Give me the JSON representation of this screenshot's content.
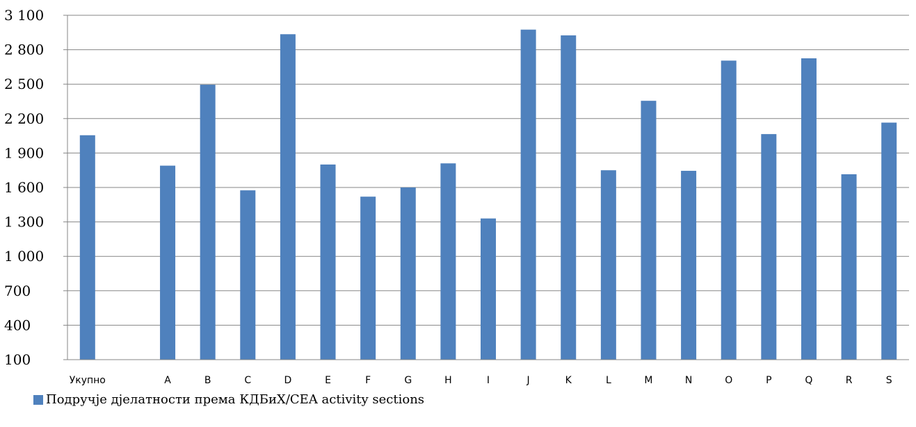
{
  "chart_data": {
    "type": "bar",
    "categories": [
      "Укупно",
      "",
      "A",
      "B",
      "C",
      "D",
      "E",
      "F",
      "G",
      "H",
      "I",
      "J",
      "K",
      "L",
      "M",
      "N",
      "O",
      "P",
      "Q",
      "R",
      "S"
    ],
    "series": [
      {
        "name": "Подручје дјелатности према КДБиХ/CEA activity sections",
        "values": [
          2055,
          null,
          1790,
          2495,
          1575,
          2935,
          1800,
          1520,
          1600,
          1810,
          1330,
          2975,
          2925,
          1750,
          2355,
          1745,
          2705,
          2065,
          2725,
          1715,
          2165
        ],
        "color": "#4f81bd"
      }
    ],
    "yticks": [
      "3 100",
      "2 800",
      "2 500",
      "2 200",
      "1 900",
      "1 600",
      "1 300",
      "1 000",
      "700",
      "400",
      "100"
    ],
    "ylim": [
      100,
      3100
    ],
    "grid": true,
    "legend_position": "bottom-left"
  }
}
